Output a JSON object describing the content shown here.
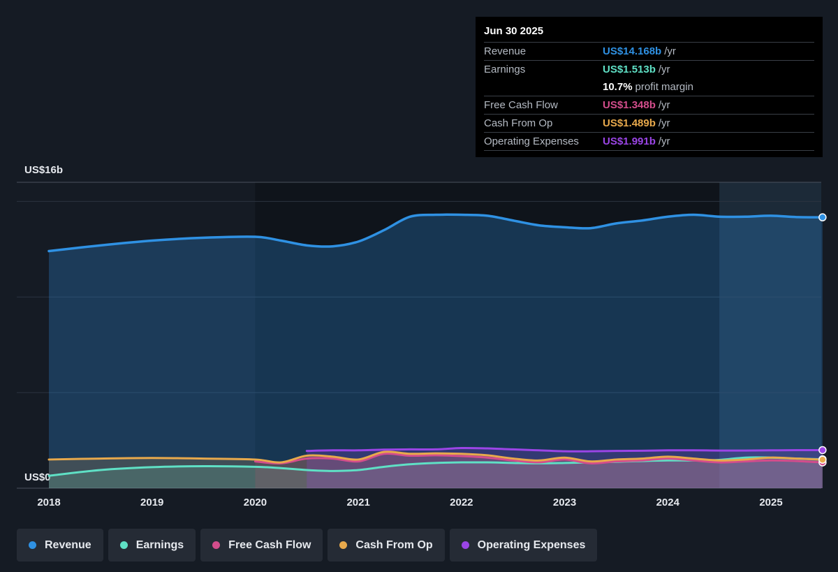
{
  "chart_data": {
    "type": "area",
    "y_unit_top_label": "US$16b",
    "y_unit_bottom_label": "US$0",
    "ylim": [
      0,
      16
    ],
    "xlim": [
      2017.7,
      2025.5
    ],
    "x_ticks": [
      "2018",
      "2019",
      "2020",
      "2021",
      "2022",
      "2023",
      "2024",
      "2025"
    ],
    "grid": true,
    "series": [
      {
        "name": "Revenue",
        "color": "#2f91e3",
        "points": [
          [
            2018.0,
            12.4
          ],
          [
            2018.5,
            12.7
          ],
          [
            2019.0,
            12.95
          ],
          [
            2019.5,
            13.1
          ],
          [
            2020.0,
            13.15
          ],
          [
            2020.25,
            12.95
          ],
          [
            2020.5,
            12.7
          ],
          [
            2020.75,
            12.65
          ],
          [
            2021.0,
            12.9
          ],
          [
            2021.25,
            13.5
          ],
          [
            2021.5,
            14.2
          ],
          [
            2021.75,
            14.3
          ],
          [
            2022.0,
            14.3
          ],
          [
            2022.25,
            14.25
          ],
          [
            2022.5,
            14.0
          ],
          [
            2022.75,
            13.75
          ],
          [
            2023.0,
            13.65
          ],
          [
            2023.25,
            13.6
          ],
          [
            2023.5,
            13.85
          ],
          [
            2023.75,
            14.0
          ],
          [
            2024.0,
            14.2
          ],
          [
            2024.25,
            14.3
          ],
          [
            2024.5,
            14.2
          ],
          [
            2024.75,
            14.2
          ],
          [
            2025.0,
            14.25
          ],
          [
            2025.25,
            14.18
          ],
          [
            2025.5,
            14.168
          ]
        ]
      },
      {
        "name": "Earnings",
        "color": "#5fe0c5",
        "points": [
          [
            2018.0,
            0.65
          ],
          [
            2018.5,
            0.95
          ],
          [
            2019.0,
            1.1
          ],
          [
            2019.5,
            1.15
          ],
          [
            2020.0,
            1.12
          ],
          [
            2020.25,
            1.05
          ],
          [
            2020.5,
            0.95
          ],
          [
            2020.75,
            0.9
          ],
          [
            2021.0,
            0.95
          ],
          [
            2021.25,
            1.12
          ],
          [
            2021.5,
            1.25
          ],
          [
            2021.75,
            1.32
          ],
          [
            2022.0,
            1.35
          ],
          [
            2022.25,
            1.35
          ],
          [
            2022.5,
            1.32
          ],
          [
            2022.75,
            1.3
          ],
          [
            2023.0,
            1.32
          ],
          [
            2023.25,
            1.35
          ],
          [
            2023.5,
            1.38
          ],
          [
            2023.75,
            1.42
          ],
          [
            2024.0,
            1.45
          ],
          [
            2024.25,
            1.45
          ],
          [
            2024.5,
            1.48
          ],
          [
            2024.75,
            1.6
          ],
          [
            2025.0,
            1.6
          ],
          [
            2025.25,
            1.55
          ],
          [
            2025.5,
            1.513
          ]
        ]
      },
      {
        "name": "Free Cash Flow",
        "color": "#d34d8c",
        "points": [
          [
            2020.0,
            1.4
          ],
          [
            2020.25,
            1.3
          ],
          [
            2020.5,
            1.55
          ],
          [
            2020.75,
            1.55
          ],
          [
            2021.0,
            1.4
          ],
          [
            2021.25,
            1.8
          ],
          [
            2021.5,
            1.7
          ],
          [
            2021.75,
            1.72
          ],
          [
            2022.0,
            1.68
          ],
          [
            2022.25,
            1.6
          ],
          [
            2022.5,
            1.45
          ],
          [
            2022.75,
            1.35
          ],
          [
            2023.0,
            1.5
          ],
          [
            2023.25,
            1.3
          ],
          [
            2023.5,
            1.4
          ],
          [
            2023.75,
            1.45
          ],
          [
            2024.0,
            1.55
          ],
          [
            2024.25,
            1.45
          ],
          [
            2024.5,
            1.35
          ],
          [
            2024.75,
            1.4
          ],
          [
            2025.0,
            1.45
          ],
          [
            2025.25,
            1.42
          ],
          [
            2025.5,
            1.348
          ]
        ]
      },
      {
        "name": "Cash From Op",
        "color": "#e8a94c",
        "points": [
          [
            2018.0,
            1.5
          ],
          [
            2018.5,
            1.55
          ],
          [
            2019.0,
            1.58
          ],
          [
            2019.5,
            1.55
          ],
          [
            2020.0,
            1.5
          ],
          [
            2020.25,
            1.35
          ],
          [
            2020.5,
            1.7
          ],
          [
            2020.75,
            1.65
          ],
          [
            2021.0,
            1.5
          ],
          [
            2021.25,
            1.9
          ],
          [
            2021.5,
            1.8
          ],
          [
            2021.75,
            1.82
          ],
          [
            2022.0,
            1.8
          ],
          [
            2022.25,
            1.72
          ],
          [
            2022.5,
            1.55
          ],
          [
            2022.75,
            1.45
          ],
          [
            2023.0,
            1.6
          ],
          [
            2023.25,
            1.4
          ],
          [
            2023.5,
            1.5
          ],
          [
            2023.75,
            1.55
          ],
          [
            2024.0,
            1.65
          ],
          [
            2024.25,
            1.55
          ],
          [
            2024.5,
            1.45
          ],
          [
            2024.75,
            1.5
          ],
          [
            2025.0,
            1.6
          ],
          [
            2025.25,
            1.55
          ],
          [
            2025.5,
            1.489
          ]
        ]
      },
      {
        "name": "Operating Expenses",
        "color": "#9b45e6",
        "points": [
          [
            2020.5,
            1.95
          ],
          [
            2020.75,
            1.98
          ],
          [
            2021.0,
            1.98
          ],
          [
            2021.25,
            2.02
          ],
          [
            2021.5,
            2.03
          ],
          [
            2021.75,
            2.03
          ],
          [
            2022.0,
            2.1
          ],
          [
            2022.25,
            2.08
          ],
          [
            2022.5,
            2.03
          ],
          [
            2022.75,
            1.98
          ],
          [
            2023.0,
            1.93
          ],
          [
            2023.25,
            1.93
          ],
          [
            2023.5,
            1.95
          ],
          [
            2023.75,
            1.96
          ],
          [
            2024.0,
            1.98
          ],
          [
            2024.25,
            1.98
          ],
          [
            2024.5,
            1.97
          ],
          [
            2024.75,
            1.97
          ],
          [
            2025.0,
            1.98
          ],
          [
            2025.25,
            1.99
          ],
          [
            2025.5,
            1.991
          ]
        ]
      }
    ],
    "tooltip": {
      "date": "Jun 30 2025",
      "rows": [
        {
          "label": "Revenue",
          "value": "US$14.168b",
          "unit": "/yr",
          "color": "#2f91e3"
        },
        {
          "label": "Earnings",
          "value": "US$1.513b",
          "unit": "/yr",
          "color": "#5fe0c5"
        },
        {
          "label": "",
          "value": "10.7%",
          "unit": "profit margin",
          "color": "#ffffff"
        },
        {
          "label": "Free Cash Flow",
          "value": "US$1.348b",
          "unit": "/yr",
          "color": "#d34d8c"
        },
        {
          "label": "Cash From Op",
          "value": "US$1.489b",
          "unit": "/yr",
          "color": "#e8a94c"
        },
        {
          "label": "Operating Expenses",
          "value": "US$1.991b",
          "unit": "/yr",
          "color": "#9b45e6"
        }
      ]
    }
  },
  "legend": [
    {
      "label": "Revenue",
      "color": "#2f91e3"
    },
    {
      "label": "Earnings",
      "color": "#5fe0c5"
    },
    {
      "label": "Free Cash Flow",
      "color": "#d34d8c"
    },
    {
      "label": "Cash From Op",
      "color": "#e8a94c"
    },
    {
      "label": "Operating Expenses",
      "color": "#9b45e6"
    }
  ]
}
